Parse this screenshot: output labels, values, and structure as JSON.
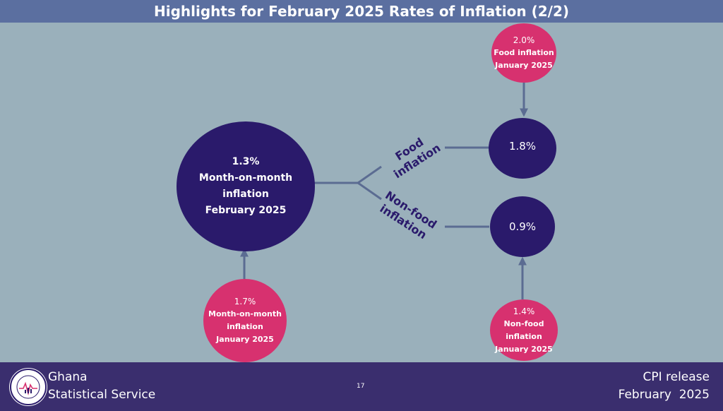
{
  "header": {
    "title": "Highlights for February 2025 Rates of Inflation (2/2)"
  },
  "main_node": {
    "value": "1.3%",
    "label_1": "Month-on-month",
    "label_2": "inflation",
    "period": "February 2025"
  },
  "prev_main_node": {
    "value": "1.7%",
    "label_1": "Month-on-month",
    "label_2": "inflation",
    "period": "January 2025"
  },
  "food_branch": {
    "label_1": "Food",
    "label_2": "inflation",
    "current_value": "1.8%",
    "prev": {
      "value": "2.0%",
      "label": "Food inflation",
      "period": "January 2025"
    }
  },
  "nonfood_branch": {
    "label_1": "Non-food",
    "label_2": "inflation",
    "current_value": "0.9%",
    "prev": {
      "value": "1.4%",
      "label_1": "Non-food",
      "label_2": "inflation",
      "period": "January 2025"
    }
  },
  "footer": {
    "org_line_1": "Ghana",
    "org_line_2": "Statistical Service",
    "page_number": "17",
    "release_line_1": "CPI release",
    "release_line_2": "February  2025",
    "logo_text_top": "STATISTICAL SERVICE",
    "logo_text_bottom": "GHANA"
  },
  "colors": {
    "background": "#9ab0bb",
    "title_bar": "#5b6fa0",
    "navy": "#2a1a6b",
    "pink": "#d7316f",
    "connector": "#5b6c92",
    "footer": "#3a2e6e"
  }
}
